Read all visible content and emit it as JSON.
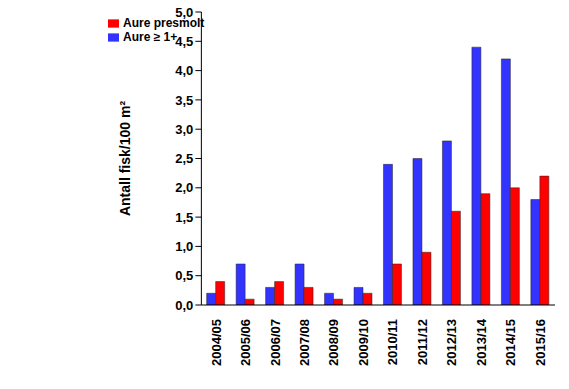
{
  "chart_data": {
    "type": "bar",
    "y_label": "Antall fisk/100 m²",
    "categories": [
      "2004/05",
      "2005/06",
      "2006/07",
      "2007/08",
      "2008/09",
      "2009/10",
      "2010/11",
      "2011/12",
      "2012/13",
      "2013/14",
      "2014/15",
      "2015/16"
    ],
    "series": [
      {
        "name": "Aure ≥ 1+",
        "color": "#3333ff",
        "values": [
          0.2,
          0.7,
          0.3,
          0.7,
          0.2,
          0.3,
          2.4,
          2.5,
          2.8,
          4.4,
          4.2,
          1.8
        ]
      },
      {
        "name": "Aure presmolt",
        "color": "#ff0000",
        "values": [
          0.4,
          0.1,
          0.4,
          0.3,
          0.1,
          0.2,
          0.7,
          0.9,
          1.6,
          1.9,
          2.0,
          2.2
        ]
      }
    ],
    "ylim": [
      0,
      5
    ],
    "yticks": [
      {
        "value": 0,
        "label": "0,0"
      },
      {
        "value": 0.5,
        "label": "0,5"
      },
      {
        "value": 1,
        "label": "1,0"
      },
      {
        "value": 1.5,
        "label": "1,5"
      },
      {
        "value": 2,
        "label": "2,0"
      },
      {
        "value": 2.5,
        "label": "2,5"
      },
      {
        "value": 3,
        "label": "3,0"
      },
      {
        "value": 3.5,
        "label": "3,5"
      },
      {
        "value": 4,
        "label": "4,0"
      },
      {
        "value": 4.5,
        "label": "4,5"
      },
      {
        "value": 5,
        "label": "5,0"
      }
    ],
    "grid": false,
    "legend": "upper left"
  }
}
